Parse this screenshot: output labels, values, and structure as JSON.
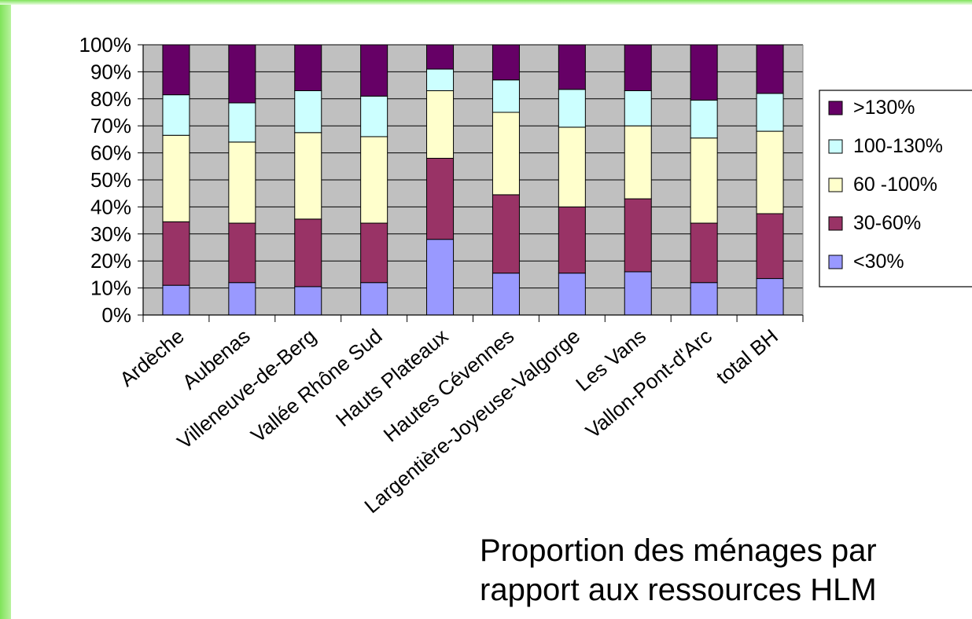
{
  "caption": {
    "line1": "Proportion des ménages par",
    "line2": "rapport aux ressources HLM"
  },
  "chart_data": {
    "type": "bar",
    "stacked": true,
    "percent_stacked": true,
    "categories": [
      "Ardèche",
      "Aubenas",
      "Villeneuve-de-Berg",
      "Vallée Rhône Sud",
      "Hauts Plateaux",
      "Hautes Cévennes",
      "Largentière-Joyeuse-Valgorge",
      "Les Vans",
      "Vallon-Pont-d'Arc",
      "total BH"
    ],
    "series": [
      {
        "name": "<30%",
        "color": "#9999ff",
        "values": [
          11,
          12,
          10.5,
          12,
          28,
          15.5,
          15.5,
          16,
          12,
          13.5
        ]
      },
      {
        "name": "30-60%",
        "color": "#993366",
        "values": [
          23.5,
          22,
          25,
          22,
          30,
          29,
          24.5,
          27,
          22,
          24
        ]
      },
      {
        "name": "60 -100%",
        "color": "#ffffcc",
        "values": [
          32,
          30,
          32,
          32,
          25,
          30.5,
          29.5,
          27,
          31.5,
          30.5
        ]
      },
      {
        "name": "100-130%",
        "color": "#ccffff",
        "values": [
          15,
          14.5,
          15.5,
          15,
          8,
          12,
          14,
          13,
          14,
          14
        ]
      },
      {
        "name": ">130%",
        "color": "#660066",
        "values": [
          18.5,
          21.5,
          17,
          19,
          9,
          13,
          16.5,
          17,
          20.5,
          18
        ]
      }
    ],
    "ylim": [
      0,
      100
    ],
    "yticks": [
      "0%",
      "10%",
      "20%",
      "30%",
      "40%",
      "50%",
      "60%",
      "70%",
      "80%",
      "90%",
      "100%"
    ],
    "plot_background": "#c0c0c0",
    "grid": true,
    "legend_order": [
      ">130%",
      "100-130%",
      "60 -100%",
      "30-60%",
      "<30%"
    ],
    "legend_placement": "right",
    "xlabel": "",
    "ylabel": ""
  }
}
